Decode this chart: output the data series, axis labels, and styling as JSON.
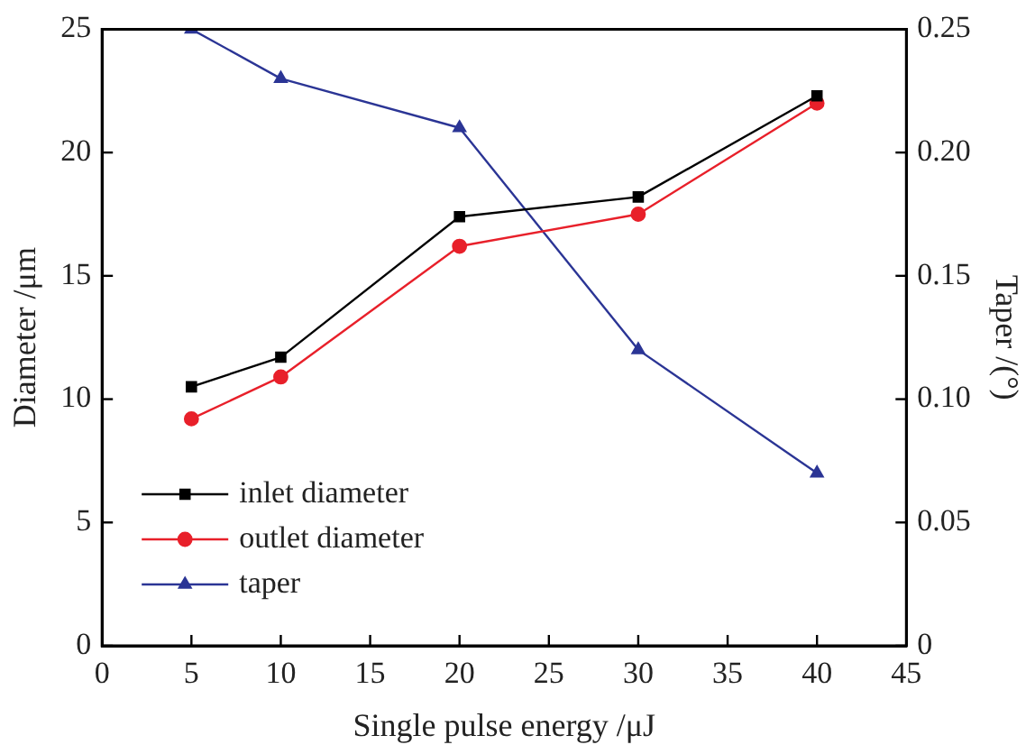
{
  "chart_data": {
    "type": "line",
    "xlabel": "Single pulse energy /μJ",
    "ylabel": "Diameter /μm",
    "y2label": "Taper /(°)",
    "x": [
      5,
      10,
      20,
      30,
      40
    ],
    "series": [
      {
        "name": "inlet diameter",
        "color": "#000000",
        "marker": "square",
        "values": [
          10.5,
          11.7,
          17.4,
          18.2,
          22.3
        ]
      },
      {
        "name": "outlet diameter",
        "color": "#e8202a",
        "marker": "circle",
        "values": [
          9.2,
          10.9,
          16.2,
          17.5,
          22.0
        ]
      },
      {
        "name": "taper",
        "color": "#2b3595",
        "marker": "triangle",
        "axis": "y2",
        "values": [
          0.25,
          0.23,
          0.21,
          0.12,
          0.07
        ]
      }
    ],
    "xlim": [
      0,
      45
    ],
    "xticks": [
      0,
      5,
      10,
      15,
      20,
      25,
      30,
      35,
      40,
      45
    ],
    "ylim": [
      0,
      25
    ],
    "yticks": [
      0,
      5,
      10,
      15,
      20,
      25
    ],
    "y2lim": [
      0,
      0.25
    ],
    "y2ticks": [
      0,
      {
        "value": 0.05,
        "label": "0.05"
      },
      {
        "value": 0.1,
        "label": "0.10"
      },
      {
        "value": 0.15,
        "label": "0.15"
      },
      {
        "value": 0.2,
        "label": "0.20"
      },
      {
        "value": 0.25,
        "label": "0.25"
      }
    ],
    "grid": false,
    "legend": "bottom left",
    "line_style": "solid"
  }
}
